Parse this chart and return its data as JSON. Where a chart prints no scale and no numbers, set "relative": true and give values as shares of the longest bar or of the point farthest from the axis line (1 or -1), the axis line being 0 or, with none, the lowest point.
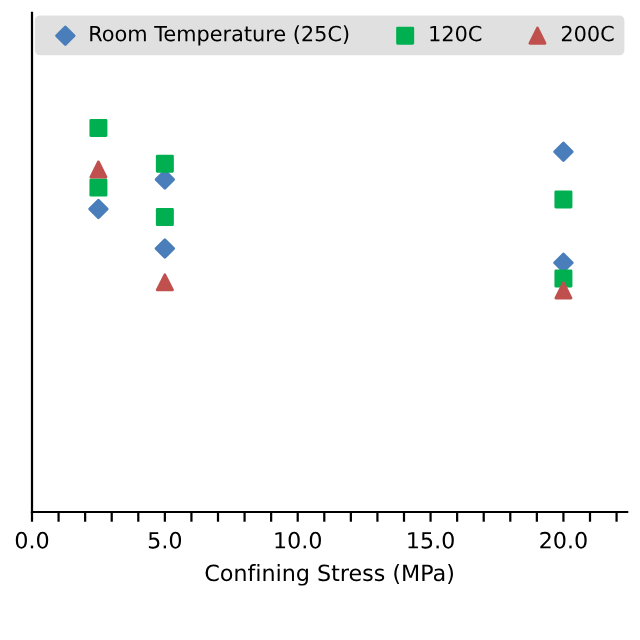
{
  "chart_data": {
    "type": "scatter",
    "xlabel": "Confining Stress (MPa)",
    "relative": true,
    "xlim": [
      0,
      22.4
    ],
    "xticks": [
      {
        "value": 0,
        "label": "0.0"
      },
      {
        "value": 1,
        "label": null
      },
      {
        "value": 2,
        "label": null
      },
      {
        "value": 3,
        "label": null
      },
      {
        "value": 4,
        "label": null
      },
      {
        "value": 5,
        "label": "5.0"
      },
      {
        "value": 6,
        "label": null
      },
      {
        "value": 7,
        "label": null
      },
      {
        "value": 8,
        "label": null
      },
      {
        "value": 9,
        "label": null
      },
      {
        "value": 10,
        "label": "10.0"
      },
      {
        "value": 11,
        "label": null
      },
      {
        "value": 12,
        "label": null
      },
      {
        "value": 13,
        "label": null
      },
      {
        "value": 14,
        "label": null
      },
      {
        "value": 15,
        "label": "15.0"
      },
      {
        "value": 16,
        "label": null
      },
      {
        "value": 17,
        "label": null
      },
      {
        "value": 18,
        "label": null
      },
      {
        "value": 19,
        "label": null
      },
      {
        "value": 20,
        "label": "20.0"
      },
      {
        "value": 21,
        "label": null
      },
      {
        "value": 22,
        "label": null
      }
    ],
    "legend": "top",
    "grid": false,
    "series": [
      {
        "name": "Room Temperature (25C)",
        "color": "#4a7ebb",
        "marker": "diamond",
        "x": [
          2.5,
          5,
          5,
          20,
          20
        ],
        "values": [
          0.789,
          0.866,
          0.686,
          0.938,
          0.649
        ]
      },
      {
        "name": "120C",
        "color": "#00b050",
        "marker": "square",
        "x": [
          2.5,
          2.5,
          5,
          5,
          20,
          20
        ],
        "values": [
          1.0,
          0.845,
          0.907,
          0.768,
          0.814,
          0.608
        ]
      },
      {
        "name": "200C",
        "color": "#c0504d",
        "marker": "triangle",
        "x": [
          2.5,
          5,
          20
        ],
        "values": [
          0.892,
          0.598,
          0.577
        ]
      }
    ]
  }
}
